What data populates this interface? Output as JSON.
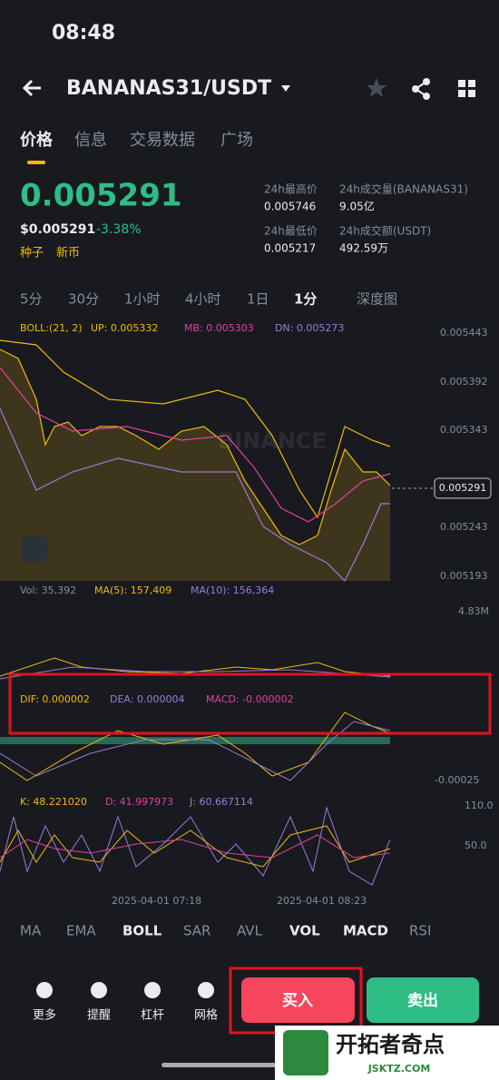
{
  "status": {
    "time": "08:48"
  },
  "header": {
    "title": "BANANAS31/USDT"
  },
  "tabs": [
    "价格",
    "信息",
    "交易数据",
    "广场"
  ],
  "price": {
    "last": "0.005291",
    "usd": "$0.005291",
    "change": "-3.38%",
    "tags": [
      "种子",
      "新币"
    ]
  },
  "stats": [
    {
      "label": "24h最高价",
      "value": "0.005746"
    },
    {
      "label": "24h成交量(BANANAS31)",
      "value": "9.05亿"
    },
    {
      "label": "24h最低价",
      "value": "0.005217"
    },
    {
      "label": "24h成交额(USDT)",
      "value": "492.59万"
    }
  ],
  "intervals": [
    "5分",
    "30分",
    "1小时",
    "4小时",
    "1日",
    "1分",
    "深度图"
  ],
  "boll": [
    "BOLL:(21, 2)",
    "UP: 0.005332",
    "MB: 0.005303",
    "DN: 0.005273"
  ],
  "price_axis": [
    "0.005443",
    "0.005392",
    "0.005343",
    "0.005243",
    "0.005193"
  ],
  "current_price": "0.005291",
  "watermark": "BINANCE",
  "vol": [
    "Vol: 35,392",
    "MA(5): 157,409",
    "MA(10): 156,364"
  ],
  "vol_axis": "4.83M",
  "macd": [
    "DIF: 0.000002",
    "DEA: 0.000004",
    "MACD: -0.000002"
  ],
  "macd_axis": "-0.00025",
  "kdj": [
    "K: 48.221020",
    "D: 41.997973",
    "J: 60.667114"
  ],
  "kdj_axis": [
    "110.0",
    "50.0"
  ],
  "times": [
    "2025-04-01 07:18",
    "2025-04-01 08:23"
  ],
  "indicators": [
    "MA",
    "EMA",
    "BOLL",
    "SAR",
    "AVL",
    "VOL",
    "MACD",
    "RSI"
  ],
  "actions": [
    "更多",
    "提醒",
    "杠杆",
    "网格"
  ],
  "buy": "买入",
  "sell": "卖出",
  "logo": {
    "name": "开拓者奇点",
    "site": "JSKTZ.COM"
  }
}
